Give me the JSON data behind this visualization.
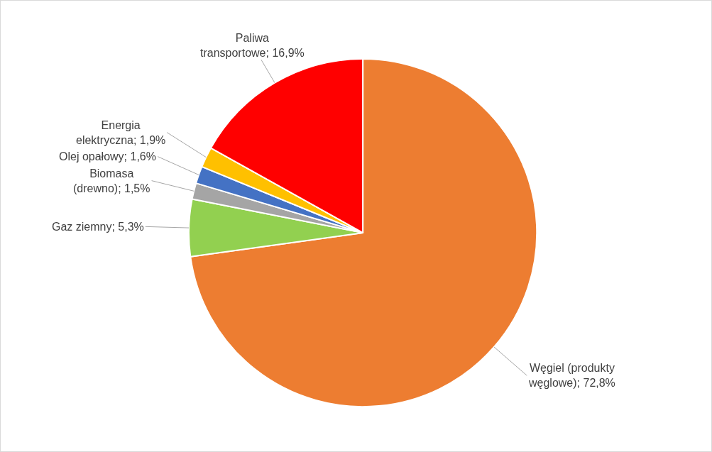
{
  "chart_data": {
    "type": "pie",
    "categories": [
      "Węgiel (produkty węglowe)",
      "Gaz ziemny",
      "Biomasa (drewno)",
      "Olej opałowy",
      "Energia elektryczna",
      "Paliwa transportowe"
    ],
    "values": [
      72.8,
      5.3,
      1.5,
      1.6,
      1.9,
      16.9
    ],
    "value_labels": [
      "72,8%",
      "5,3%",
      "1,5%",
      "1,6%",
      "1,9%",
      "16,9%"
    ],
    "colors": [
      "#ed7d31",
      "#92d050",
      "#a5a5a5",
      "#4472c4",
      "#ffc000",
      "#ff0000"
    ],
    "legend": false
  }
}
